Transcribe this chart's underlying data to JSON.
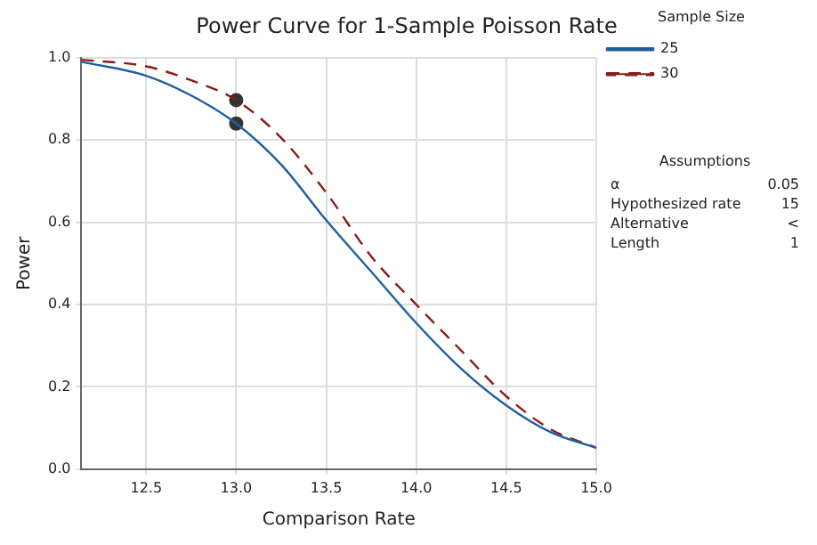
{
  "chart_data": {
    "type": "line",
    "title": "Power Curve for 1-Sample Poisson Rate",
    "xlabel": "Comparison Rate",
    "ylabel": "Power",
    "legend_title": "Sample Size",
    "x": [
      12.14,
      12.5,
      12.75,
      13.0,
      13.25,
      13.5,
      13.75,
      14.0,
      14.25,
      14.5,
      14.75,
      15.0
    ],
    "series": [
      {
        "name": "25",
        "color": "#1f5fa0",
        "line_style": "solid",
        "marker": "none",
        "values": [
          0.99,
          0.956,
          0.908,
          0.84,
          0.74,
          0.605,
          0.48,
          0.355,
          0.244,
          0.155,
          0.089,
          0.052
        ]
      },
      {
        "name": "30",
        "color": "#8b1a1a",
        "line_style": "dashed",
        "marker": "none",
        "values": [
          0.995,
          0.979,
          0.945,
          0.897,
          0.805,
          0.672,
          0.517,
          0.4,
          0.288,
          0.177,
          0.096,
          0.052
        ]
      },
      {
        "type": "scatter",
        "color": "#333333",
        "marker": "circle",
        "x": [
          13.0,
          13.0
        ],
        "values": [
          0.84,
          0.897
        ]
      }
    ],
    "xlim": [
      12.14,
      15.0
    ],
    "xticks": [
      12.5,
      {
        "value": 13,
        "label": "13.0"
      },
      13.5,
      {
        "value": 14,
        "label": "14.0"
      },
      14.5,
      {
        "value": 15,
        "label": "15.0"
      }
    ],
    "ylim": [
      0.0,
      1.0
    ],
    "yticks": [
      {
        "value": 0,
        "label": "0.0"
      },
      0.2,
      0.4,
      0.6,
      0.8,
      {
        "value": 1,
        "label": "1.0"
      }
    ],
    "grid": true,
    "legend": "right",
    "annotations": [
      "Assumptions",
      "α",
      "0.05",
      "Hypothesized rate",
      "15",
      "Alternative",
      "<",
      "Length",
      "1"
    ]
  }
}
